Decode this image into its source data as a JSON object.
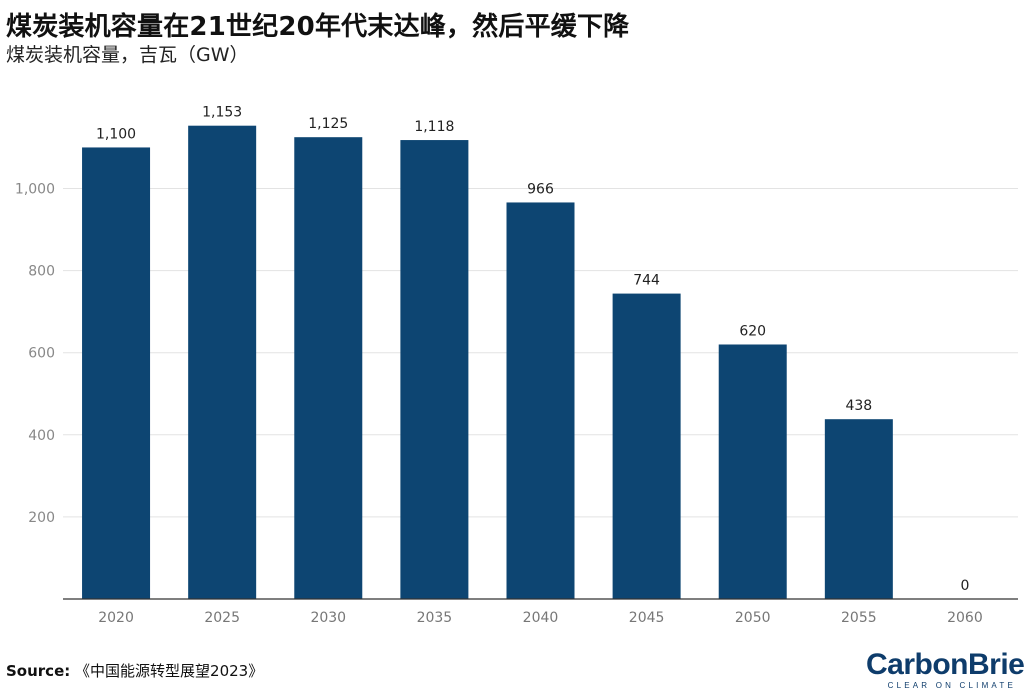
{
  "chart_data": {
    "type": "bar",
    "title": "煤炭装机容量在21世纪20年代末达峰，然后平缓下降",
    "subtitle": "煤炭装机容量，吉瓦（GW）",
    "categories": [
      "2020",
      "2025",
      "2030",
      "2035",
      "2040",
      "2045",
      "2050",
      "2055",
      "2060"
    ],
    "values": [
      1100,
      1153,
      1125,
      1118,
      966,
      744,
      620,
      438,
      0
    ],
    "data_labels": [
      "1,100",
      "1,153",
      "1,125",
      "1,118",
      "966",
      "744",
      "620",
      "438",
      "0"
    ],
    "yticks": [
      200,
      400,
      600,
      800,
      1000
    ],
    "ytick_labels": [
      "200",
      "400",
      "600",
      "800",
      "1,000"
    ],
    "ylim": [
      0,
      1200
    ],
    "grid": true,
    "bar_color": "#0d4572"
  },
  "footer": {
    "source_label": "Source:",
    "source_text": "《中国能源转型展望2023》",
    "brand_name": "CarbonBrief",
    "brand_tagline": "CLEAR ON CLIMATE"
  }
}
